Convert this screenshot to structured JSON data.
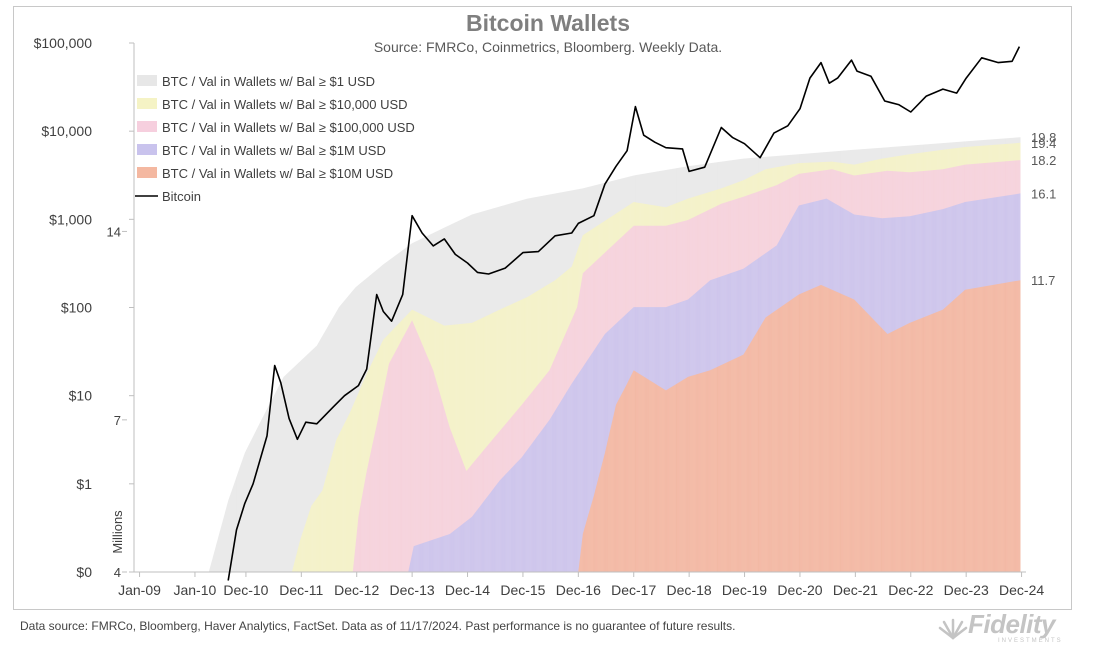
{
  "chart_data": {
    "type": "area",
    "title": "Bitcoin Wallets",
    "subtitle": "Source: FMRCo, Coinmetrics, Bloomberg. Weekly Data.",
    "x_tick_labels": [
      "Jan-09",
      "Jan-10",
      "Dec-10",
      "Dec-11",
      "Dec-12",
      "Dec-13",
      "Dec-14",
      "Dec-15",
      "Dec-16",
      "Dec-17",
      "Dec-18",
      "Dec-19",
      "Dec-20",
      "Dec-21",
      "Dec-22",
      "Dec-23",
      "Dec-24"
    ],
    "x_tick_years": [
      2009.0,
      2010.0,
      2010.92,
      2011.92,
      2012.92,
      2013.92,
      2014.92,
      2015.92,
      2016.92,
      2017.92,
      2018.92,
      2019.92,
      2020.92,
      2021.92,
      2022.92,
      2023.92,
      2024.92
    ],
    "x_range": [
      2008.9,
      2025.0
    ],
    "left_axis": {
      "label": "",
      "type": "log",
      "range": [
        0.1,
        100000
      ],
      "tick_values": [
        0.1,
        1,
        10,
        100,
        1000,
        10000,
        100000
      ],
      "tick_labels": [
        "$0",
        "$1",
        "$10",
        "$100",
        "$1,000",
        "$10,000",
        "$100,000"
      ]
    },
    "right_axis": {
      "label": "Millions",
      "type": "log2",
      "range": [
        4,
        28
      ],
      "tick_values": [
        4,
        7,
        14
      ],
      "tick_labels": [
        "4",
        "7",
        "14"
      ]
    },
    "legend": {
      "position": "top-left",
      "entries": [
        {
          "label": "BTC / Val in Wallets w/ Bal ≥ $1 USD",
          "color": "#e6e6e6"
        },
        {
          "label": "BTC / Val in Wallets w/ Bal ≥ $10,000 USD",
          "color": "#f4f2c2"
        },
        {
          "label": "BTC / Val in Wallets w/ Bal ≥ $100,000 USD",
          "color": "#f5ccdc"
        },
        {
          "label": "BTC / Val in Wallets w/ Bal ≥ $1M USD",
          "color": "#c6c0ec"
        },
        {
          "label": "BTC / Val in Wallets w/ Bal ≥ $10M USD",
          "color": "#f3b49c"
        },
        {
          "label": "Bitcoin",
          "color": "#000000"
        }
      ]
    },
    "series": [
      {
        "name": "BTC / Val in Wallets w/ Bal ≥ $1 USD",
        "color": "#e6e6e6",
        "end_label": "19.8",
        "points": [
          [
            2010.25,
            4.0
          ],
          [
            2010.6,
            5.2
          ],
          [
            2010.9,
            6.2
          ],
          [
            2011.2,
            7.0
          ],
          [
            2011.6,
            8.2
          ],
          [
            2012.2,
            9.2
          ],
          [
            2012.6,
            10.6
          ],
          [
            2012.9,
            11.4
          ],
          [
            2013.4,
            12.4
          ],
          [
            2013.92,
            13.4
          ],
          [
            2014.5,
            14.2
          ],
          [
            2015.0,
            14.9
          ],
          [
            2016.0,
            15.8
          ],
          [
            2017.0,
            16.4
          ],
          [
            2017.92,
            17.2
          ],
          [
            2018.9,
            17.8
          ],
          [
            2019.9,
            18.3
          ],
          [
            2020.9,
            18.6
          ],
          [
            2021.9,
            18.9
          ],
          [
            2022.9,
            19.2
          ],
          [
            2023.9,
            19.5
          ],
          [
            2024.9,
            19.8
          ]
        ]
      },
      {
        "name": "BTC / Val in Wallets w/ Bal ≥ $10,000 USD",
        "color": "#f4f2c2",
        "end_label": "19.4",
        "points": [
          [
            2011.75,
            4.0
          ],
          [
            2011.9,
            4.5
          ],
          [
            2012.1,
            5.1
          ],
          [
            2012.3,
            5.4
          ],
          [
            2012.55,
            6.5
          ],
          [
            2012.8,
            7.2
          ],
          [
            2013.1,
            8.3
          ],
          [
            2013.4,
            9.4
          ],
          [
            2013.92,
            10.5
          ],
          [
            2014.5,
            9.9
          ],
          [
            2015.0,
            10.0
          ],
          [
            2015.5,
            10.5
          ],
          [
            2016.0,
            11.0
          ],
          [
            2016.5,
            11.7
          ],
          [
            2016.8,
            12.3
          ],
          [
            2017.0,
            13.8
          ],
          [
            2017.92,
            15.6
          ],
          [
            2018.5,
            15.3
          ],
          [
            2018.9,
            15.8
          ],
          [
            2019.5,
            16.4
          ],
          [
            2019.9,
            16.9
          ],
          [
            2020.3,
            17.6
          ],
          [
            2020.9,
            18.0
          ],
          [
            2021.5,
            18.1
          ],
          [
            2021.9,
            17.9
          ],
          [
            2022.4,
            18.3
          ],
          [
            2022.9,
            18.6
          ],
          [
            2023.5,
            18.9
          ],
          [
            2023.9,
            19.1
          ],
          [
            2024.9,
            19.4
          ]
        ]
      },
      {
        "name": "BTC / Val in Wallets w/ Bal ≥ $100,000 USD",
        "color": "#f5ccdc",
        "end_label": "18.2",
        "points": [
          [
            2012.85,
            4.0
          ],
          [
            2012.95,
            4.9
          ],
          [
            2013.1,
            5.8
          ],
          [
            2013.3,
            7.0
          ],
          [
            2013.5,
            8.6
          ],
          [
            2013.92,
            10.1
          ],
          [
            2014.3,
            8.4
          ],
          [
            2014.6,
            6.8
          ],
          [
            2014.9,
            5.8
          ],
          [
            2015.3,
            6.4
          ],
          [
            2015.9,
            7.4
          ],
          [
            2016.4,
            8.4
          ],
          [
            2016.9,
            10.6
          ],
          [
            2017.0,
            12.0
          ],
          [
            2017.5,
            13.2
          ],
          [
            2017.92,
            14.3
          ],
          [
            2018.5,
            14.3
          ],
          [
            2018.9,
            14.6
          ],
          [
            2019.5,
            15.5
          ],
          [
            2019.9,
            15.9
          ],
          [
            2020.5,
            16.6
          ],
          [
            2020.9,
            17.3
          ],
          [
            2021.5,
            17.6
          ],
          [
            2021.9,
            17.2
          ],
          [
            2022.5,
            17.5
          ],
          [
            2022.9,
            17.4
          ],
          [
            2023.5,
            17.6
          ],
          [
            2023.9,
            17.9
          ],
          [
            2024.9,
            18.2
          ]
        ]
      },
      {
        "name": "BTC / Val in Wallets w/ Bal ≥ $1M USD",
        "color": "#c6c0ec",
        "end_label": "16.1",
        "points": [
          [
            2013.85,
            4.0
          ],
          [
            2013.95,
            4.4
          ],
          [
            2014.6,
            4.6
          ],
          [
            2015.0,
            4.9
          ],
          [
            2015.5,
            5.6
          ],
          [
            2015.9,
            6.1
          ],
          [
            2016.4,
            7.0
          ],
          [
            2016.8,
            8.0
          ],
          [
            2017.0,
            8.5
          ],
          [
            2017.4,
            9.6
          ],
          [
            2017.92,
            10.6
          ],
          [
            2018.5,
            10.6
          ],
          [
            2018.9,
            10.9
          ],
          [
            2019.3,
            11.7
          ],
          [
            2019.9,
            12.2
          ],
          [
            2020.5,
            13.3
          ],
          [
            2020.9,
            15.4
          ],
          [
            2021.4,
            15.8
          ],
          [
            2021.9,
            14.9
          ],
          [
            2022.4,
            14.7
          ],
          [
            2022.9,
            14.8
          ],
          [
            2023.5,
            15.2
          ],
          [
            2023.9,
            15.6
          ],
          [
            2024.9,
            16.1
          ]
        ]
      },
      {
        "name": "BTC / Val in Wallets w/ Bal ≥ $10M USD",
        "color": "#f3b49c",
        "end_label": "11.7",
        "points": [
          [
            2016.92,
            4.0
          ],
          [
            2017.0,
            4.6
          ],
          [
            2017.2,
            5.3
          ],
          [
            2017.4,
            6.2
          ],
          [
            2017.6,
            7.4
          ],
          [
            2017.8,
            8.0
          ],
          [
            2017.92,
            8.4
          ],
          [
            2018.5,
            7.8
          ],
          [
            2018.9,
            8.2
          ],
          [
            2019.3,
            8.4
          ],
          [
            2019.9,
            8.9
          ],
          [
            2020.3,
            10.2
          ],
          [
            2020.9,
            11.1
          ],
          [
            2021.3,
            11.5
          ],
          [
            2021.9,
            10.9
          ],
          [
            2022.5,
            9.6
          ],
          [
            2022.9,
            10.0
          ],
          [
            2023.5,
            10.5
          ],
          [
            2023.9,
            11.3
          ],
          [
            2024.9,
            11.7
          ]
        ]
      },
      {
        "name": "Bitcoin",
        "color": "#000000",
        "axis": "left",
        "points": [
          [
            2010.6,
            0.08
          ],
          [
            2010.75,
            0.3
          ],
          [
            2010.9,
            0.6
          ],
          [
            2011.05,
            1.0
          ],
          [
            2011.3,
            3.5
          ],
          [
            2011.44,
            22
          ],
          [
            2011.55,
            14
          ],
          [
            2011.7,
            5.5
          ],
          [
            2011.85,
            3.2
          ],
          [
            2012.0,
            5.0
          ],
          [
            2012.2,
            4.8
          ],
          [
            2012.5,
            7.5
          ],
          [
            2012.7,
            10
          ],
          [
            2012.95,
            13
          ],
          [
            2013.1,
            20
          ],
          [
            2013.28,
            140
          ],
          [
            2013.4,
            90
          ],
          [
            2013.55,
            70
          ],
          [
            2013.75,
            140
          ],
          [
            2013.92,
            1100
          ],
          [
            2014.1,
            700
          ],
          [
            2014.3,
            500
          ],
          [
            2014.5,
            600
          ],
          [
            2014.7,
            400
          ],
          [
            2014.92,
            320
          ],
          [
            2015.1,
            250
          ],
          [
            2015.3,
            240
          ],
          [
            2015.6,
            280
          ],
          [
            2015.92,
            420
          ],
          [
            2016.2,
            430
          ],
          [
            2016.5,
            650
          ],
          [
            2016.8,
            700
          ],
          [
            2016.92,
            900
          ],
          [
            2017.2,
            1100
          ],
          [
            2017.4,
            2500
          ],
          [
            2017.6,
            4000
          ],
          [
            2017.8,
            6000
          ],
          [
            2017.95,
            19000
          ],
          [
            2018.1,
            9000
          ],
          [
            2018.3,
            7500
          ],
          [
            2018.5,
            6500
          ],
          [
            2018.8,
            6300
          ],
          [
            2018.92,
            3500
          ],
          [
            2019.2,
            3900
          ],
          [
            2019.5,
            11000
          ],
          [
            2019.7,
            8500
          ],
          [
            2019.92,
            7200
          ],
          [
            2020.2,
            5000
          ],
          [
            2020.45,
            9500
          ],
          [
            2020.7,
            11500
          ],
          [
            2020.92,
            18000
          ],
          [
            2021.1,
            40000
          ],
          [
            2021.3,
            60000
          ],
          [
            2021.45,
            35000
          ],
          [
            2021.6,
            40000
          ],
          [
            2021.85,
            64000
          ],
          [
            2021.95,
            48000
          ],
          [
            2022.2,
            42000
          ],
          [
            2022.45,
            22000
          ],
          [
            2022.7,
            20000
          ],
          [
            2022.92,
            16500
          ],
          [
            2023.2,
            25000
          ],
          [
            2023.5,
            30000
          ],
          [
            2023.75,
            27000
          ],
          [
            2023.92,
            40000
          ],
          [
            2024.2,
            68000
          ],
          [
            2024.5,
            60000
          ],
          [
            2024.75,
            62000
          ],
          [
            2024.88,
            91000
          ]
        ]
      }
    ]
  },
  "footer": {
    "note": "Data source: FMRCo, Bloomberg, Haver Analytics, FactSet. Data as of 11/17/2024. Past performance is no guarantee of future results.",
    "logo_text": "Fidelity",
    "logo_subtext": "INVESTMENTS"
  }
}
